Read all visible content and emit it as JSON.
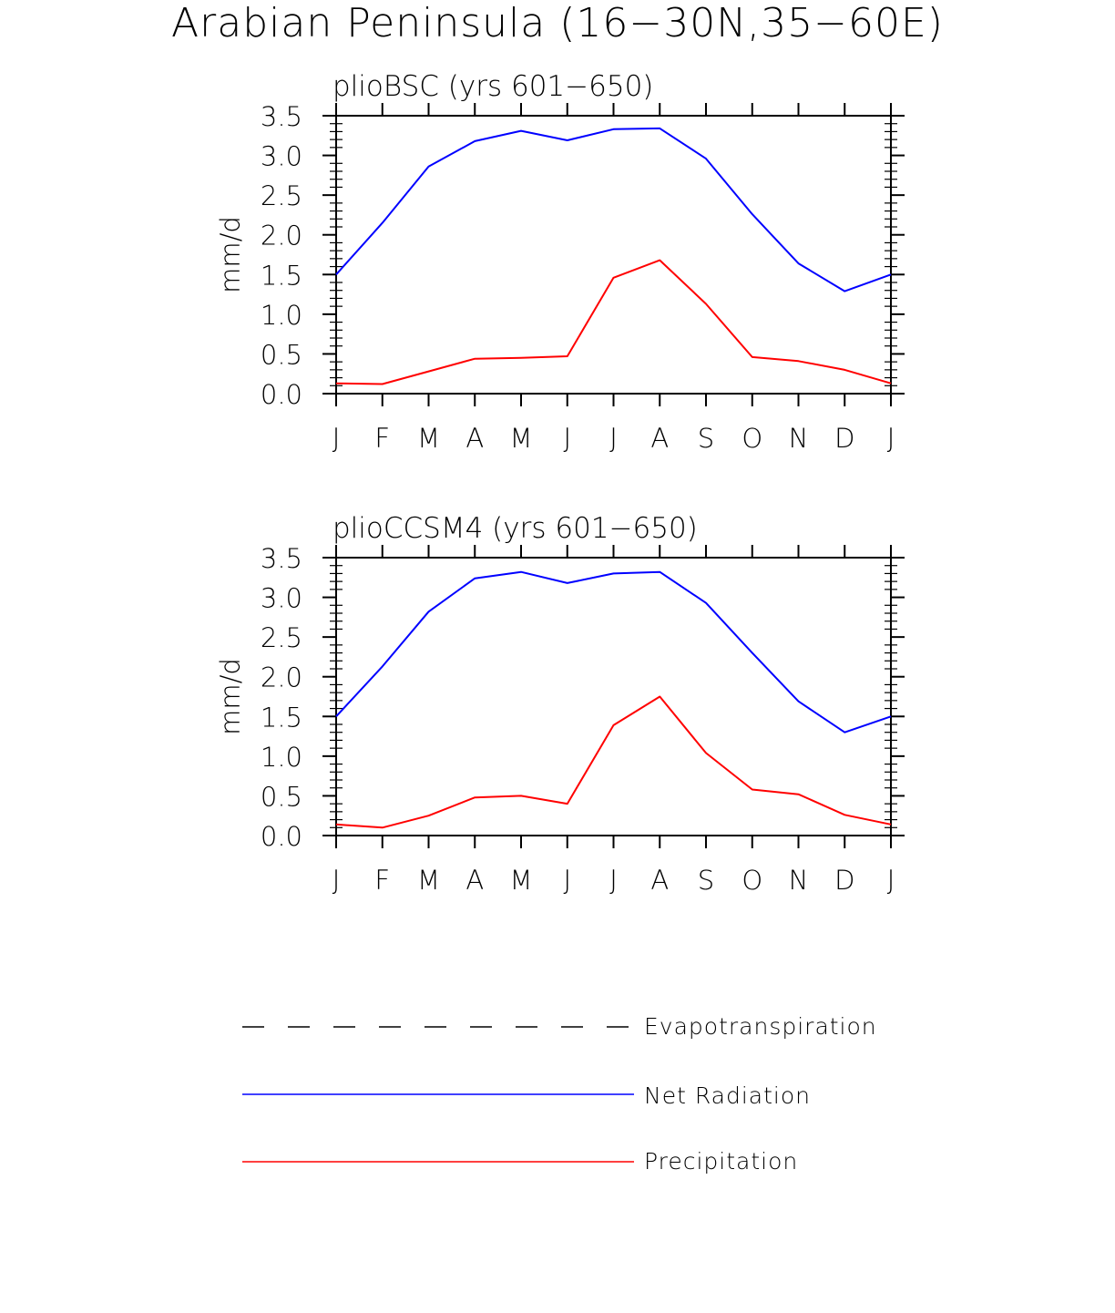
{
  "figure_title": "Arabian Peninsula (16−30N,35−60E)",
  "colors": {
    "net_radiation": "#0000ff",
    "precipitation": "#ff0000",
    "evapotranspiration": "#000000",
    "axis": "#000000"
  },
  "legend": [
    {
      "label": "Evapotranspiration",
      "style": "dashed",
      "color": "#000000"
    },
    {
      "label": "Net Radiation",
      "style": "solid",
      "color": "#0000ff"
    },
    {
      "label": "Precipitation",
      "style": "solid",
      "color": "#ff0000"
    }
  ],
  "chart_data": [
    {
      "type": "line",
      "title": "plioBSC (yrs 601−650)",
      "xlabel": "",
      "ylabel": "mm/d",
      "categories": [
        "J",
        "F",
        "M",
        "A",
        "M",
        "J",
        "J",
        "A",
        "S",
        "O",
        "N",
        "D",
        "J"
      ],
      "ylim": [
        0,
        3.5
      ],
      "yticks": [
        "0.0",
        "0.5",
        "1.0",
        "1.5",
        "2.0",
        "2.5",
        "3.0",
        "3.5"
      ],
      "series": [
        {
          "name": "Net Radiation",
          "color": "#0000ff",
          "values": [
            1.5,
            2.15,
            2.86,
            3.18,
            3.31,
            3.19,
            3.33,
            3.34,
            2.96,
            2.26,
            1.64,
            1.29,
            1.5
          ]
        },
        {
          "name": "Precipitation",
          "color": "#ff0000",
          "values": [
            0.13,
            0.12,
            0.28,
            0.44,
            0.45,
            0.47,
            1.46,
            1.68,
            1.13,
            0.46,
            0.41,
            0.3,
            0.13
          ]
        }
      ]
    },
    {
      "type": "line",
      "title": "plioCCSM4 (yrs 601−650)",
      "xlabel": "",
      "ylabel": "mm/d",
      "categories": [
        "J",
        "F",
        "M",
        "A",
        "M",
        "J",
        "J",
        "A",
        "S",
        "O",
        "N",
        "D",
        "J"
      ],
      "ylim": [
        0,
        3.5
      ],
      "yticks": [
        "0.0",
        "0.5",
        "1.0",
        "1.5",
        "2.0",
        "2.5",
        "3.0",
        "3.5"
      ],
      "series": [
        {
          "name": "Net Radiation",
          "color": "#0000ff",
          "values": [
            1.5,
            2.13,
            2.82,
            3.24,
            3.32,
            3.18,
            3.3,
            3.32,
            2.93,
            2.3,
            1.69,
            1.3,
            1.5
          ]
        },
        {
          "name": "Precipitation",
          "color": "#ff0000",
          "values": [
            0.14,
            0.1,
            0.25,
            0.48,
            0.5,
            0.4,
            1.39,
            1.75,
            1.04,
            0.58,
            0.52,
            0.26,
            0.14
          ]
        }
      ]
    }
  ]
}
